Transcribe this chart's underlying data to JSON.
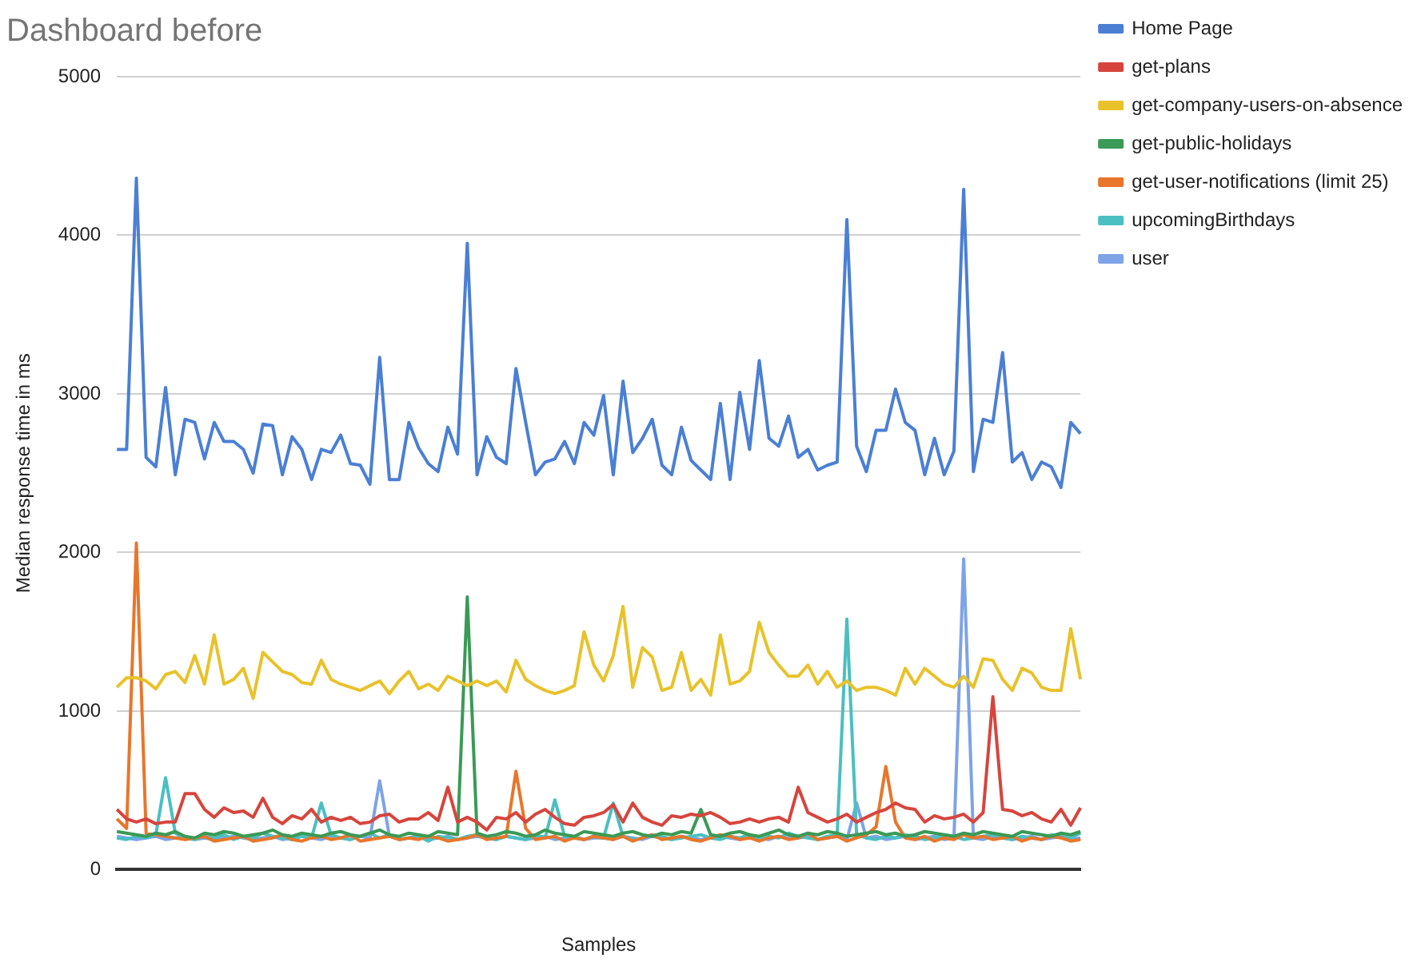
{
  "chart_data": {
    "type": "line",
    "title": "Dashboard before",
    "xlabel": "Samples",
    "ylabel": "Median response time in ms",
    "categories": [
      null,
      null,
      null,
      null,
      null,
      null,
      null,
      null,
      null,
      null,
      null,
      null,
      null,
      null,
      null,
      null,
      null,
      null,
      null,
      null,
      null,
      null,
      null,
      null,
      null,
      null,
      null,
      null,
      null,
      null,
      null,
      null,
      null,
      null,
      null,
      null,
      null,
      null,
      null,
      null,
      null,
      null,
      null,
      null,
      null,
      null,
      null,
      null,
      null,
      null,
      null,
      null,
      null,
      null,
      null,
      null,
      null,
      null,
      null,
      null,
      null,
      null,
      null,
      null,
      null,
      null,
      null,
      null,
      null,
      null,
      null,
      null,
      null,
      null,
      null,
      null,
      null,
      null,
      null,
      null,
      null,
      null,
      null,
      null,
      null,
      null,
      null,
      null,
      null,
      null,
      null,
      null,
      null,
      null,
      null,
      null,
      null,
      null,
      null,
      null
    ],
    "ylim": [
      0,
      5000
    ],
    "yticks": [
      0,
      1000,
      2000,
      3000,
      4000,
      5000
    ],
    "grid": "y",
    "legend": "right",
    "marker": "none",
    "line_style": "solid",
    "series": [
      {
        "name": "Home Page",
        "color": "#4a7fd4",
        "values": [
          2650,
          2650,
          4360,
          2600,
          2540,
          3040,
          2490,
          2840,
          2820,
          2590,
          2820,
          2700,
          2700,
          2650,
          2500,
          2810,
          2800,
          2490,
          2730,
          2650,
          2460,
          2650,
          2630,
          2740,
          2560,
          2550,
          2430,
          3230,
          2460,
          2460,
          2820,
          2660,
          2560,
          2510,
          2790,
          2620,
          3950,
          2490,
          2730,
          2600,
          2560,
          3160,
          2820,
          2490,
          2570,
          2590,
          2700,
          2560,
          2820,
          2740,
          2990,
          2490,
          3080,
          2630,
          2720,
          2840,
          2550,
          2490,
          2790,
          2580,
          2520,
          2460,
          2940,
          2460,
          3010,
          2650,
          3210,
          2720,
          2670,
          2860,
          2600,
          2650,
          2520,
          2550,
          2570,
          4100,
          2670,
          2510,
          2770,
          2770,
          3030,
          2820,
          2770,
          2490,
          2720,
          2490,
          2640,
          4290,
          2510,
          2840,
          2820,
          3260,
          2570,
          2630,
          2460,
          2570,
          2540,
          2410,
          2820,
          2750
        ]
      },
      {
        "name": "get-plans",
        "color": "#d6453d",
        "values": [
          380,
          320,
          300,
          320,
          290,
          300,
          300,
          480,
          480,
          380,
          330,
          390,
          360,
          370,
          330,
          450,
          330,
          290,
          340,
          320,
          380,
          300,
          330,
          310,
          330,
          290,
          300,
          340,
          350,
          300,
          320,
          320,
          360,
          310,
          520,
          300,
          330,
          300,
          250,
          330,
          320,
          360,
          300,
          350,
          380,
          330,
          290,
          280,
          330,
          340,
          360,
          410,
          300,
          420,
          330,
          300,
          280,
          340,
          330,
          350,
          340,
          360,
          330,
          290,
          300,
          320,
          300,
          320,
          330,
          300,
          520,
          360,
          330,
          300,
          320,
          350,
          300,
          330,
          360,
          380,
          420,
          390,
          380,
          300,
          340,
          320,
          330,
          350,
          300,
          360,
          1090,
          380,
          370,
          340,
          360,
          320,
          300,
          380,
          280,
          390
        ]
      },
      {
        "name": "get-company-users-on-absence",
        "color": "#e8c22b",
        "values": [
          1150,
          1210,
          1210,
          1190,
          1140,
          1230,
          1250,
          1180,
          1350,
          1170,
          1480,
          1170,
          1200,
          1270,
          1080,
          1370,
          1310,
          1250,
          1230,
          1180,
          1170,
          1320,
          1200,
          1170,
          1150,
          1130,
          1160,
          1190,
          1110,
          1190,
          1250,
          1140,
          1170,
          1130,
          1220,
          1190,
          1160,
          1190,
          1160,
          1190,
          1120,
          1320,
          1200,
          1160,
          1130,
          1110,
          1130,
          1160,
          1500,
          1290,
          1190,
          1350,
          1660,
          1150,
          1400,
          1340,
          1130,
          1150,
          1370,
          1130,
          1200,
          1100,
          1480,
          1170,
          1190,
          1250,
          1560,
          1370,
          1290,
          1220,
          1220,
          1290,
          1170,
          1250,
          1150,
          1190,
          1130,
          1150,
          1150,
          1130,
          1100,
          1270,
          1170,
          1270,
          1220,
          1170,
          1150,
          1220,
          1150,
          1330,
          1320,
          1200,
          1130,
          1270,
          1240,
          1150,
          1130,
          1130,
          1520,
          1200
        ]
      },
      {
        "name": "get-public-holidays",
        "color": "#3a9a56",
        "values": [
          240,
          230,
          220,
          210,
          230,
          220,
          240,
          210,
          200,
          230,
          220,
          240,
          230,
          210,
          220,
          230,
          250,
          220,
          210,
          230,
          220,
          210,
          230,
          240,
          220,
          210,
          230,
          250,
          220,
          210,
          230,
          220,
          210,
          240,
          230,
          220,
          1720,
          230,
          210,
          220,
          240,
          230,
          210,
          220,
          250,
          230,
          220,
          210,
          240,
          230,
          220,
          210,
          230,
          240,
          220,
          210,
          230,
          220,
          240,
          230,
          380,
          220,
          210,
          230,
          240,
          220,
          210,
          230,
          250,
          220,
          210,
          230,
          220,
          240,
          230,
          210,
          220,
          230,
          240,
          220,
          230,
          210,
          220,
          240,
          230,
          220,
          210,
          230,
          220,
          240,
          230,
          220,
          210,
          240,
          230,
          220,
          210,
          230,
          220,
          240
        ]
      },
      {
        "name": "get-user-notifications (limit 25)",
        "color": "#e8762b",
        "values": [
          320,
          260,
          2060,
          230,
          220,
          210,
          200,
          190,
          200,
          210,
          180,
          190,
          200,
          210,
          180,
          190,
          200,
          220,
          190,
          180,
          200,
          210,
          190,
          200,
          220,
          180,
          190,
          200,
          210,
          190,
          200,
          190,
          210,
          200,
          180,
          190,
          200,
          220,
          190,
          200,
          210,
          620,
          260,
          190,
          200,
          210,
          180,
          200,
          190,
          210,
          200,
          190,
          210,
          180,
          200,
          220,
          190,
          200,
          210,
          190,
          180,
          200,
          220,
          210,
          190,
          200,
          180,
          200,
          210,
          190,
          200,
          230,
          190,
          200,
          210,
          180,
          200,
          220,
          270,
          650,
          300,
          200,
          190,
          210,
          180,
          200,
          190,
          220,
          200,
          210,
          190,
          200,
          210,
          180,
          200,
          190,
          210,
          200,
          180,
          190
        ]
      },
      {
        "name": "upcomingBirthdays",
        "color": "#4bbfc1",
        "values": [
          200,
          190,
          210,
          200,
          220,
          580,
          230,
          200,
          190,
          210,
          200,
          220,
          190,
          210,
          200,
          230,
          210,
          200,
          190,
          210,
          200,
          420,
          220,
          200,
          190,
          210,
          230,
          200,
          220,
          190,
          200,
          210,
          180,
          210,
          200,
          190,
          210,
          220,
          200,
          190,
          210,
          200,
          190,
          220,
          200,
          440,
          210,
          200,
          190,
          210,
          200,
          420,
          210,
          190,
          200,
          220,
          210,
          190,
          200,
          210,
          220,
          200,
          190,
          210,
          200,
          220,
          190,
          210,
          200,
          230,
          210,
          200,
          190,
          210,
          220,
          1580,
          220,
          200,
          190,
          210,
          200,
          220,
          210,
          190,
          200,
          220,
          210,
          190,
          200,
          210,
          220,
          200,
          190,
          210,
          200,
          190,
          220,
          210,
          200,
          230
        ]
      },
      {
        "name": "user",
        "color": "#7ea3e6",
        "values": [
          210,
          200,
          190,
          200,
          210,
          190,
          200,
          210,
          190,
          200,
          190,
          200,
          210,
          200,
          190,
          200,
          210,
          190,
          200,
          210,
          200,
          190,
          210,
          200,
          190,
          210,
          200,
          560,
          210,
          190,
          200,
          210,
          190,
          200,
          210,
          190,
          200,
          210,
          200,
          190,
          210,
          200,
          190,
          200,
          210,
          190,
          200,
          210,
          190,
          200,
          200,
          190,
          210,
          200,
          190,
          210,
          200,
          190,
          210,
          200,
          190,
          200,
          210,
          200,
          190,
          210,
          200,
          190,
          210,
          200,
          200,
          210,
          190,
          200,
          210,
          190,
          420,
          200,
          210,
          190,
          200,
          210,
          190,
          200,
          210,
          190,
          200,
          1960,
          200,
          190,
          210,
          200,
          190,
          200,
          210,
          190,
          200,
          210,
          190,
          200
        ]
      }
    ]
  }
}
